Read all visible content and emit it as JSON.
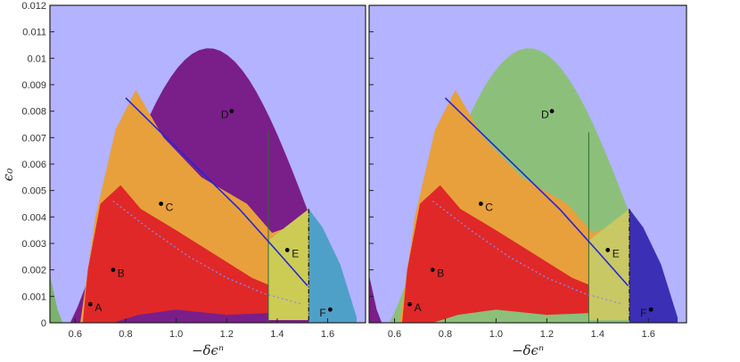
{
  "chart_data": [
    {
      "type": "heatmap",
      "panel": "left",
      "xlabel": "−δϵⁿ",
      "ylabel": "ϵ₀",
      "xlim": [
        0.5,
        1.75
      ],
      "ylim": [
        0,
        0.012
      ],
      "x_ticks": [
        "0.6",
        "0.8",
        "1.0",
        "1.2",
        "1.4",
        "1.6"
      ],
      "y_ticks": [
        "0",
        "0.001",
        "0.002",
        "0.003",
        "0.004",
        "0.005",
        "0.006",
        "0.007",
        "0.008",
        "0.009",
        "0.01",
        "0.011",
        "0.012"
      ],
      "colors": {
        "background": "#b3b3ff",
        "upper_region": "#7a1e8a",
        "middle_region": "#e8a03c",
        "lower_region": "#e02828",
        "far_right_strip": "#cccc55",
        "edge_region": "#4fa0c8",
        "left_edge": "#7ab36b"
      },
      "points": [
        {
          "label": "A",
          "x": 0.66,
          "y": 0.0007
        },
        {
          "label": "B",
          "x": 0.75,
          "y": 0.002
        },
        {
          "label": "C",
          "x": 0.94,
          "y": 0.0045
        },
        {
          "label": "D",
          "x": 1.22,
          "y": 0.008
        },
        {
          "label": "E",
          "x": 1.44,
          "y": 0.00275
        },
        {
          "label": "F",
          "x": 1.61,
          "y": 0.0005
        }
      ],
      "blue_curve": {
        "x": [
          0.8,
          0.95,
          1.1,
          1.25,
          1.4,
          1.52
        ],
        "y": [
          0.0085,
          0.0071,
          0.0057,
          0.0043,
          0.0027,
          0.0014
        ]
      },
      "dotted_curve": {
        "x": [
          0.75,
          0.9,
          1.05,
          1.2,
          1.35,
          1.5
        ],
        "y": [
          0.0046,
          0.0035,
          0.0025,
          0.0017,
          0.0011,
          0.0007
        ]
      },
      "vertical_lines": [
        1.365,
        1.525
      ]
    },
    {
      "type": "heatmap",
      "panel": "right",
      "xlabel": "−δϵⁿ",
      "xlim": [
        0.5,
        1.75
      ],
      "ylim": [
        0,
        0.012
      ],
      "x_ticks": [
        "0.6",
        "0.8",
        "1.0",
        "1.2",
        "1.4",
        "1.6"
      ],
      "colors": {
        "background": "#b3b3ff",
        "upper_region": "#8cc07a",
        "middle_region": "#e8a03c",
        "lower_region": "#e02828",
        "far_right_strip": "#c8c864",
        "edge_region": "#3b2fb5",
        "left_edge": "#7a1e8a"
      },
      "points": [
        {
          "label": "A",
          "x": 0.66,
          "y": 0.0007
        },
        {
          "label": "B",
          "x": 0.75,
          "y": 0.002
        },
        {
          "label": "C",
          "x": 0.94,
          "y": 0.0045
        },
        {
          "label": "D",
          "x": 1.22,
          "y": 0.008
        },
        {
          "label": "E",
          "x": 1.44,
          "y": 0.00275
        },
        {
          "label": "F",
          "x": 1.61,
          "y": 0.0005
        }
      ],
      "blue_curve": {
        "x": [
          0.8,
          0.95,
          1.1,
          1.25,
          1.4,
          1.52
        ],
        "y": [
          0.0085,
          0.0071,
          0.0057,
          0.0043,
          0.0027,
          0.0014
        ]
      },
      "dotted_curve": {
        "x": [
          0.75,
          0.9,
          1.05,
          1.2,
          1.35,
          1.5
        ],
        "y": [
          0.0046,
          0.0035,
          0.0025,
          0.0017,
          0.0011,
          0.0007
        ]
      },
      "vertical_lines": [
        1.365,
        1.525
      ]
    }
  ]
}
